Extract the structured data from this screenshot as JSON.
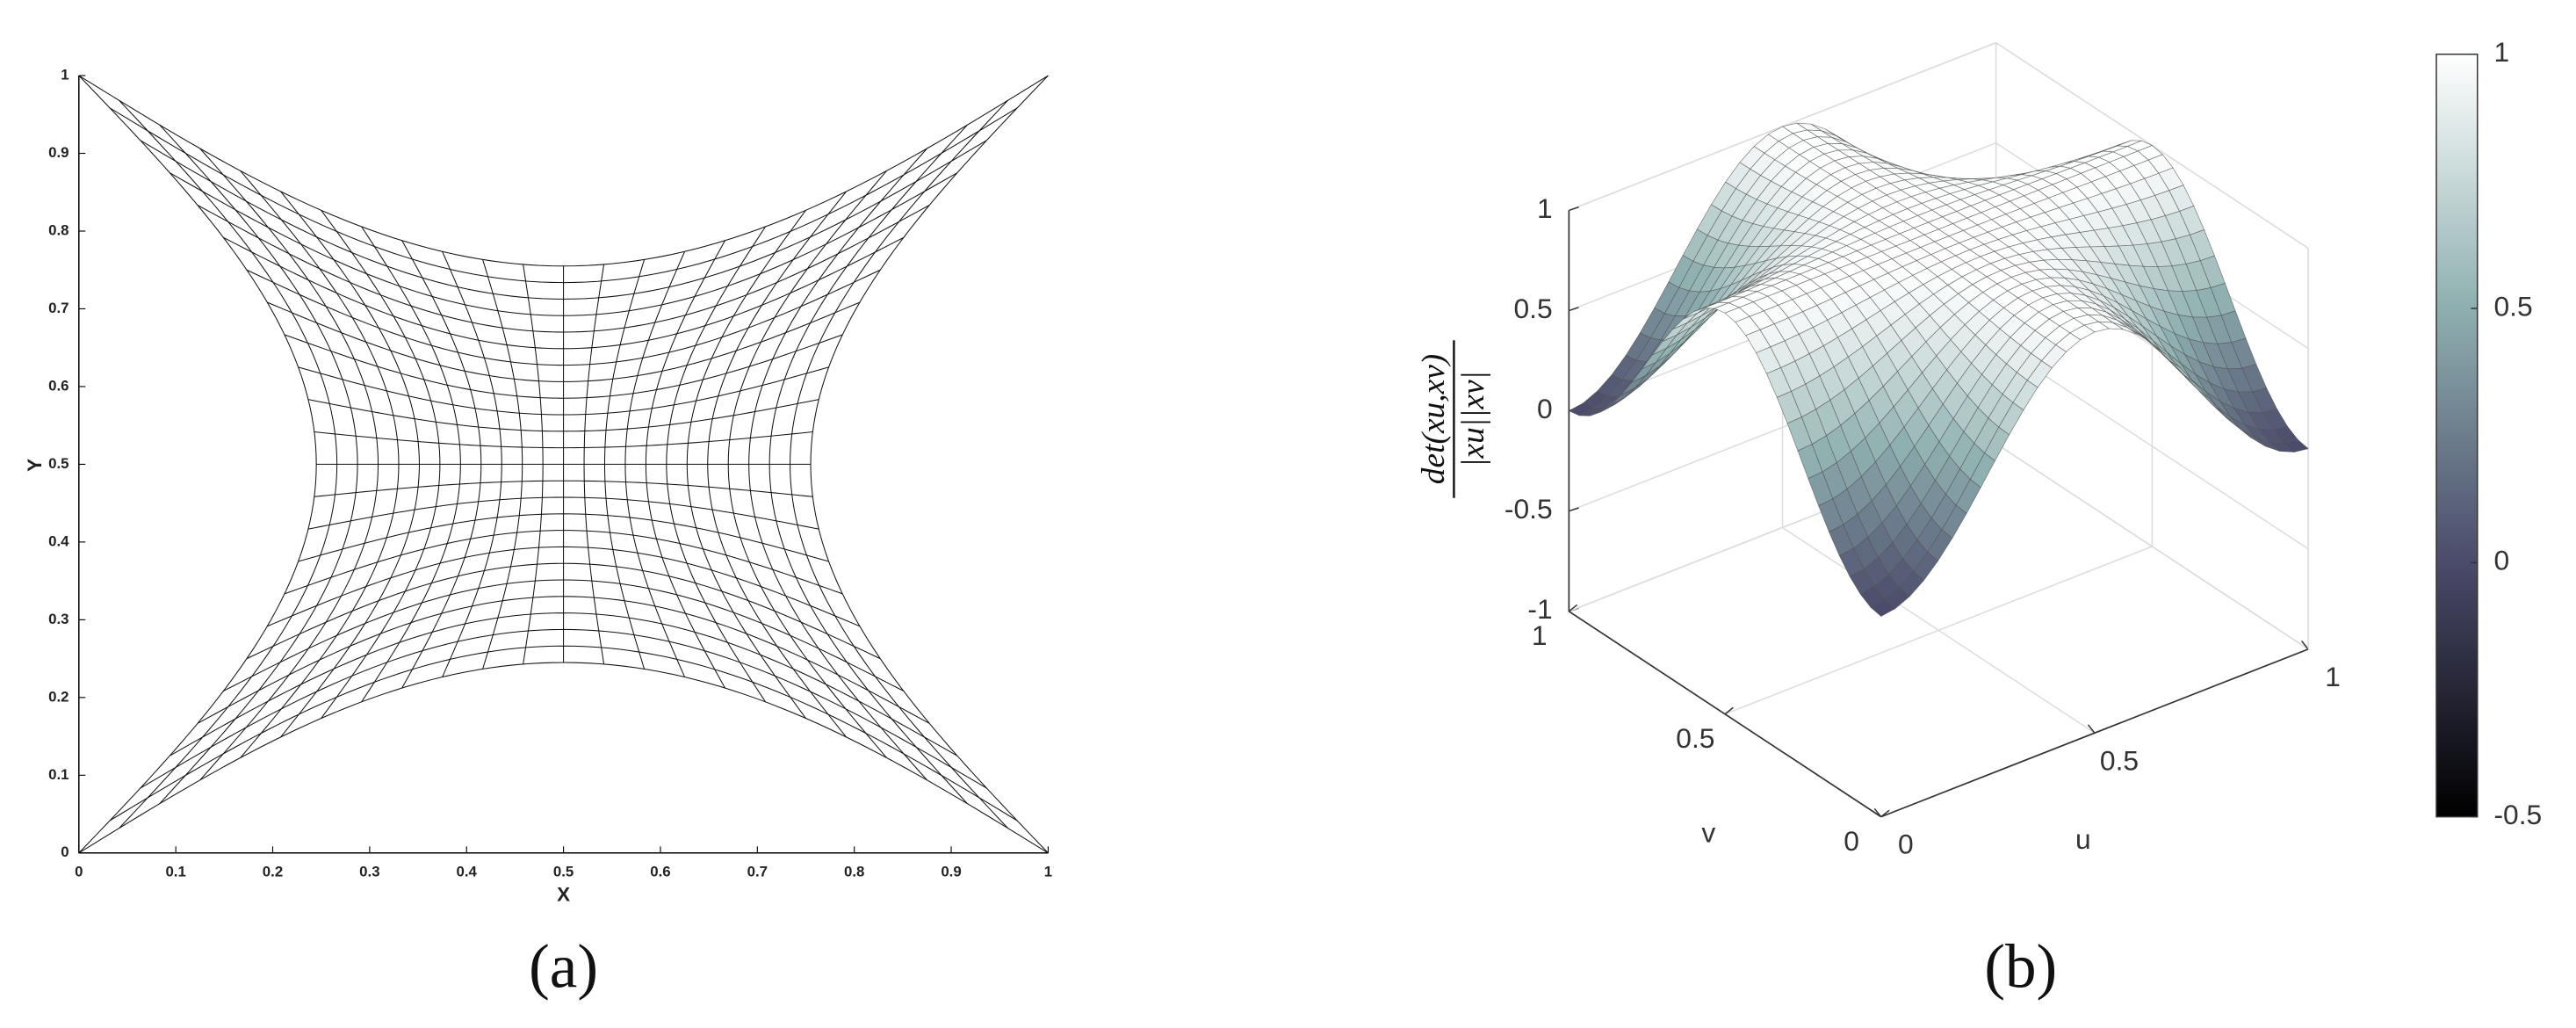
{
  "chart_data": [
    {
      "type": "mesh",
      "xlabel": "X",
      "ylabel": "Y",
      "xlim": [
        0,
        1
      ],
      "ylim": [
        0,
        1
      ],
      "xticks": [
        0,
        0.1,
        0.2,
        0.3,
        0.4,
        0.5,
        0.6,
        0.7,
        0.8,
        0.9,
        1
      ],
      "yticks": [
        0,
        0.1,
        0.2,
        0.3,
        0.4,
        0.5,
        0.6,
        0.7,
        0.8,
        0.9,
        1
      ],
      "caption": "(a)"
    },
    {
      "type": "surface",
      "xlabel": "u",
      "ylabel": "v",
      "zlabel": {
        "numerator": "det(xu,xv)",
        "denominator": "|xu||xv|"
      },
      "xlim": [
        0,
        1
      ],
      "ylim": [
        0,
        1
      ],
      "zlim": [
        -1,
        1
      ],
      "xticks": [
        0,
        0.5,
        1
      ],
      "yticks": [
        0,
        0.5,
        1
      ],
      "zticks": [
        -1,
        -0.5,
        0,
        0.5,
        1
      ],
      "colormap": "bone",
      "colorbar": {
        "lim": [
          -0.5,
          1
        ],
        "ticks": [
          -0.5,
          0,
          0.5,
          1
        ]
      },
      "caption": "(b)"
    }
  ]
}
